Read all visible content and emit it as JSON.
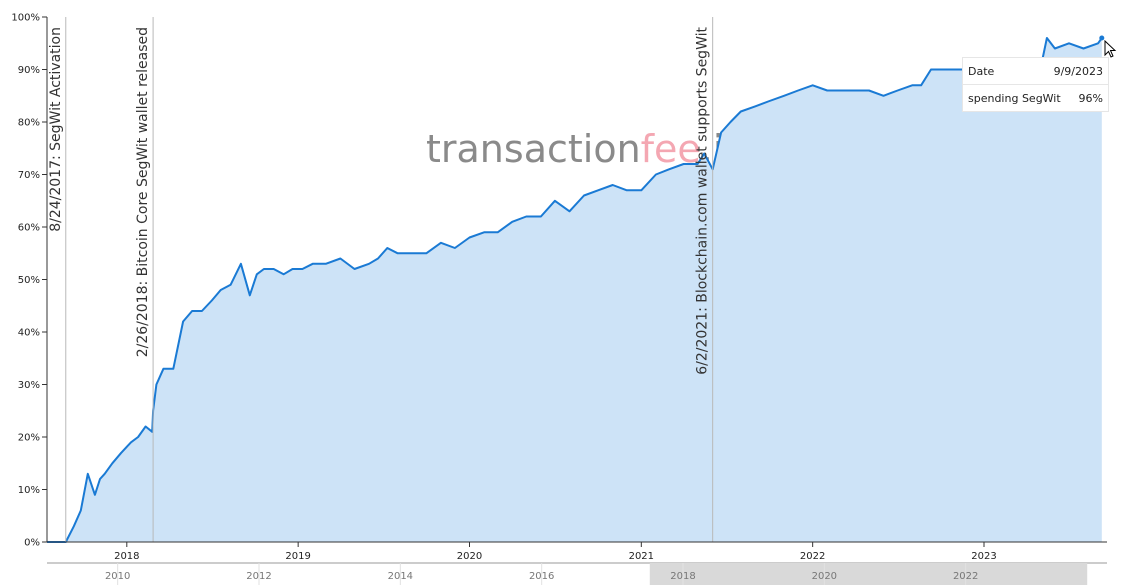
{
  "watermark": {
    "part1": "transaction",
    "part2": "fee",
    "part3": ".info",
    "color1": "#8a8a8a",
    "color2": "#f4a7b2"
  },
  "tooltip": {
    "date_label": "Date",
    "date_value": "9/9/2023",
    "series_label": "spending SegWit",
    "series_value": "96%"
  },
  "colors": {
    "line": "#1a7ad4",
    "fill": "#cde3f7",
    "event_line": "#b8b8b8",
    "axis": "#333333",
    "navigator_selection": "#d9d9d9"
  },
  "chart_data": {
    "type": "area",
    "ylim": [
      0,
      100
    ],
    "yticks": [
      0,
      10,
      20,
      30,
      40,
      50,
      60,
      70,
      80,
      90,
      100
    ],
    "ytick_suffix": "%",
    "xlim": [
      "2017-07-15",
      "2023-09-20"
    ],
    "xticks": [
      {
        "date": "2018-01-01",
        "label": "2018"
      },
      {
        "date": "2019-01-01",
        "label": "2019"
      },
      {
        "date": "2020-01-01",
        "label": "2020"
      },
      {
        "date": "2021-01-01",
        "label": "2021"
      },
      {
        "date": "2022-01-01",
        "label": "2022"
      },
      {
        "date": "2023-01-01",
        "label": "2023"
      }
    ],
    "events": [
      {
        "date": "2017-08-24",
        "label": "8/24/2017: SegWit Activation"
      },
      {
        "date": "2018-02-26",
        "label": "2/26/2018: Bitcoin Core SegWit wallet released"
      },
      {
        "date": "2021-06-02",
        "label": "6/2/2021: Blockchain.com wallet supports SegWit"
      }
    ],
    "series": [
      {
        "name": "spending SegWit",
        "x": [
          "2017-07-15",
          "2017-08-24",
          "2017-09-10",
          "2017-09-25",
          "2017-10-10",
          "2017-10-25",
          "2017-11-05",
          "2017-11-15",
          "2017-12-01",
          "2017-12-20",
          "2018-01-10",
          "2018-01-25",
          "2018-02-10",
          "2018-02-24",
          "2018-02-26",
          "2018-03-05",
          "2018-03-20",
          "2018-04-10",
          "2018-05-01",
          "2018-05-20",
          "2018-06-10",
          "2018-07-01",
          "2018-07-20",
          "2018-08-10",
          "2018-09-01",
          "2018-09-20",
          "2018-10-05",
          "2018-10-20",
          "2018-11-10",
          "2018-12-01",
          "2018-12-20",
          "2019-01-10",
          "2019-02-01",
          "2019-03-01",
          "2019-04-01",
          "2019-05-01",
          "2019-06-01",
          "2019-06-20",
          "2019-07-10",
          "2019-08-01",
          "2019-09-01",
          "2019-10-01",
          "2019-11-01",
          "2019-12-01",
          "2020-01-01",
          "2020-02-01",
          "2020-03-01",
          "2020-04-01",
          "2020-05-01",
          "2020-06-01",
          "2020-07-01",
          "2020-08-01",
          "2020-09-01",
          "2020-10-01",
          "2020-11-01",
          "2020-12-01",
          "2021-01-01",
          "2021-02-01",
          "2021-03-01",
          "2021-04-01",
          "2021-05-01",
          "2021-05-15",
          "2021-06-02",
          "2021-06-20",
          "2021-07-10",
          "2021-08-01",
          "2021-09-01",
          "2021-10-01",
          "2021-11-01",
          "2021-12-01",
          "2022-01-01",
          "2022-02-01",
          "2022-03-01",
          "2022-04-01",
          "2022-05-01",
          "2022-06-01",
          "2022-07-01",
          "2022-08-01",
          "2022-08-20",
          "2022-09-10",
          "2022-10-01",
          "2022-11-01",
          "2022-12-01",
          "2023-01-01",
          "2023-02-01",
          "2023-03-01",
          "2023-04-01",
          "2023-05-01",
          "2023-05-15",
          "2023-06-01",
          "2023-07-01",
          "2023-08-01",
          "2023-09-01",
          "2023-09-09"
        ],
        "values": [
          0,
          0,
          3,
          6,
          13,
          9,
          12,
          13,
          15,
          17,
          19,
          20,
          22,
          21,
          25,
          30,
          33,
          33,
          42,
          44,
          44,
          46,
          48,
          49,
          53,
          47,
          51,
          52,
          52,
          51,
          52,
          52,
          53,
          53,
          54,
          52,
          53,
          54,
          56,
          55,
          55,
          55,
          57,
          56,
          58,
          59,
          59,
          61,
          62,
          62,
          65,
          63,
          66,
          67,
          68,
          67,
          67,
          70,
          71,
          72,
          72,
          74,
          71,
          78,
          80,
          82,
          83,
          84,
          85,
          86,
          87,
          86,
          86,
          86,
          86,
          85,
          86,
          87,
          87,
          90,
          90,
          90,
          90,
          89,
          89,
          89,
          90,
          90,
          96,
          94,
          95,
          94,
          95,
          96
        ]
      }
    ]
  },
  "navigator": {
    "labels": [
      {
        "year": 2010,
        "label": "2010"
      },
      {
        "year": 2012,
        "label": "2012"
      },
      {
        "year": 2014,
        "label": "2014"
      },
      {
        "year": 2016,
        "label": "2016"
      },
      {
        "year": 2018,
        "label": "2018"
      },
      {
        "year": 2020,
        "label": "2020"
      },
      {
        "year": 2022,
        "label": "2022"
      }
    ],
    "start_year": 2009,
    "end_year": 2024,
    "selection": {
      "from": 2017.53,
      "to": 2023.72
    }
  }
}
